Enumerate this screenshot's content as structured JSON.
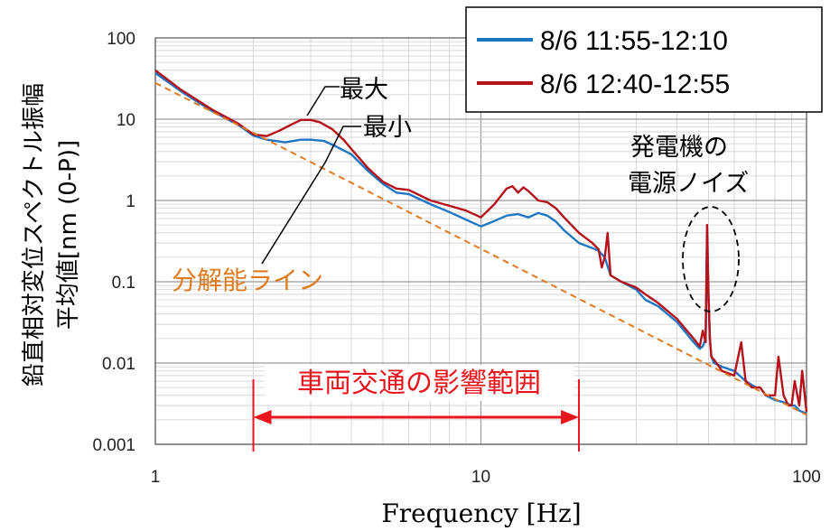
{
  "chart_data": {
    "type": "line",
    "x_scale": "log",
    "y_scale": "log",
    "xlim": [
      1,
      100
    ],
    "ylim": [
      0.001,
      100
    ],
    "xlabel": "Frequency [Hz]",
    "ylabel_lines": [
      "鉛直相対変位スペクトル振幅",
      "平均値[nm (0-P)]"
    ],
    "x_ticks": [
      {
        "value": 1,
        "label": "1"
      },
      {
        "value": 10,
        "label": "10"
      },
      {
        "value": 100,
        "label": "100"
      }
    ],
    "y_ticks": [
      {
        "value": 100,
        "label": "100"
      },
      {
        "value": 10,
        "label": "10"
      },
      {
        "value": 1,
        "label": "1"
      },
      {
        "value": 0.1,
        "label": "0.1"
      },
      {
        "value": 0.01,
        "label": "0.01"
      },
      {
        "value": 0.001,
        "label": "0.001"
      }
    ],
    "grid": true,
    "legend": "top-right",
    "series": [
      {
        "name": "8/6  11:55-12:10",
        "color": "#1f77c4",
        "x": [
          1,
          1.2,
          1.5,
          1.8,
          2,
          2.2,
          2.5,
          2.8,
          3,
          3.3,
          3.6,
          4,
          4.5,
          5,
          5.5,
          6,
          7,
          8,
          9,
          10,
          11,
          12,
          13,
          14,
          15,
          16,
          17,
          18,
          20,
          22,
          23,
          24,
          25,
          27,
          30,
          32,
          35,
          40,
          45,
          47,
          48,
          49,
          49.5,
          50,
          50.5,
          51,
          52,
          55,
          60,
          65,
          70,
          72,
          75,
          80,
          85,
          90,
          92,
          95,
          100
        ],
        "y": [
          37,
          22,
          12.5,
          8.5,
          6.3,
          5.6,
          5.2,
          5.6,
          5.6,
          5.4,
          4.6,
          3.7,
          2.3,
          1.6,
          1.25,
          1.2,
          0.9,
          0.72,
          0.58,
          0.48,
          0.56,
          0.65,
          0.68,
          0.62,
          0.7,
          0.65,
          0.55,
          0.43,
          0.3,
          0.26,
          0.24,
          0.2,
          0.12,
          0.1,
          0.08,
          0.06,
          0.05,
          0.032,
          0.018,
          0.015,
          0.016,
          0.02,
          0.4,
          0.06,
          0.02,
          0.012,
          0.01,
          0.009,
          0.008,
          0.006,
          0.005,
          0.005,
          0.004,
          0.0035,
          0.0033,
          0.003,
          0.003,
          0.0026,
          0.0024
        ]
      },
      {
        "name": "8/6  12:40-12:55",
        "color": "#b5121b",
        "x": [
          1,
          1.2,
          1.5,
          1.8,
          2,
          2.2,
          2.4,
          2.6,
          2.8,
          3,
          3.2,
          3.5,
          3.8,
          4,
          4.5,
          5,
          5.5,
          6,
          7,
          8,
          9,
          10,
          11,
          12,
          12.5,
          13,
          13.5,
          14,
          15,
          16,
          17,
          18,
          20,
          22,
          23,
          23.5,
          24,
          24.5,
          25,
          27,
          30,
          32,
          35,
          40,
          45,
          47,
          48,
          49,
          49.5,
          50,
          50.5,
          51,
          52,
          55,
          60,
          63,
          65,
          68,
          70,
          72,
          75,
          78,
          80,
          82,
          85,
          88,
          90,
          92,
          95,
          97,
          100
        ],
        "y": [
          40,
          23,
          13,
          8.8,
          6.5,
          6.2,
          7.2,
          8.5,
          9.8,
          9.8,
          9.2,
          7.5,
          5.5,
          4.3,
          2.5,
          1.7,
          1.4,
          1.35,
          1.0,
          0.86,
          0.75,
          0.62,
          0.9,
          1.4,
          1.5,
          1.25,
          1.45,
          1.3,
          1.0,
          0.95,
          0.8,
          0.62,
          0.4,
          0.3,
          0.25,
          0.15,
          0.2,
          0.4,
          0.12,
          0.1,
          0.085,
          0.07,
          0.055,
          0.035,
          0.02,
          0.016,
          0.025,
          0.018,
          0.5,
          0.07,
          0.02,
          0.012,
          0.011,
          0.008,
          0.007,
          0.018,
          0.006,
          0.005,
          0.005,
          0.005,
          0.004,
          0.004,
          0.004,
          0.012,
          0.004,
          0.003,
          0.003,
          0.006,
          0.003,
          0.008,
          0.0025
        ]
      }
    ],
    "resolution_line": {
      "x": [
        1,
        100
      ],
      "y": [
        28,
        0.0023
      ],
      "color": "#e07b20",
      "label": "分解能ライン"
    },
    "annotations": {
      "max_label": "最大",
      "min_label": "最小",
      "generator_noise_line1": "発電機の",
      "generator_noise_line2": "電源ノイズ",
      "traffic_label": "車両交通の影響範囲",
      "traffic_range": [
        2,
        20
      ]
    }
  }
}
